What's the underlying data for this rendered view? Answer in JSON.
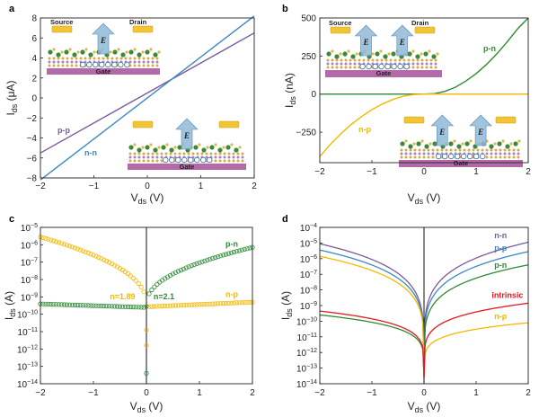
{
  "colors": {
    "purple": "#7a5a9e",
    "blue": "#3a88c4",
    "green": "#2e8b36",
    "yellow": "#f5b800",
    "red": "#e8161e",
    "gate": "#b36aa8",
    "electrode": "#f3c531",
    "arrow": "#8fb8d8"
  },
  "chart_data": [
    {
      "panel": "a",
      "type": "line",
      "xlabel": "V_ds (V)",
      "ylabel": "I_ds (μA)",
      "xlim": [
        -2,
        2
      ],
      "ylim": [
        -8,
        8
      ],
      "xticks": [
        -2,
        -1,
        0,
        1,
        2
      ],
      "yticks": [
        -8,
        -6,
        -4,
        -2,
        0,
        2,
        4,
        6,
        8
      ],
      "series": [
        {
          "name": "p-p",
          "color": "#7a5a9e",
          "x": [
            -2,
            2
          ],
          "y": [
            -5.5,
            6.5
          ]
        },
        {
          "name": "n-n",
          "color": "#3a88c4",
          "x": [
            -2,
            2
          ],
          "y": [
            -8.2,
            8.2
          ]
        }
      ],
      "insets": {
        "source": "Source",
        "drain": "Drain",
        "gate": "Gate",
        "field": "E"
      }
    },
    {
      "panel": "b",
      "type": "line",
      "xlabel": "V_ds (V)",
      "ylabel": "I_ds (nA)",
      "xlim": [
        -2,
        2
      ],
      "ylim": [
        -450,
        500
      ],
      "xticks": [
        -2,
        -1,
        0,
        1,
        2
      ],
      "yticks": [
        -250,
        0,
        250,
        500
      ],
      "series": [
        {
          "name": "p-n",
          "color": "#2e8b36",
          "x": [
            -2,
            0,
            0.2,
            0.4,
            0.6,
            0.8,
            1.0,
            1.2,
            1.4,
            1.6,
            1.8,
            2.0
          ],
          "y": [
            0,
            0,
            3,
            18,
            45,
            85,
            135,
            195,
            265,
            345,
            430,
            520
          ]
        },
        {
          "name": "n-p",
          "color": "#f5b800",
          "x": [
            -2.0,
            -1.8,
            -1.6,
            -1.4,
            -1.2,
            -1.0,
            -0.8,
            -0.6,
            -0.4,
            -0.2,
            0,
            2
          ],
          "y": [
            -410,
            -330,
            -262,
            -200,
            -148,
            -102,
            -65,
            -35,
            -14,
            -3,
            0,
            0
          ]
        }
      ],
      "insets": {
        "source": "Source",
        "drain": "Drain",
        "gate": "Gate",
        "field": "E"
      }
    },
    {
      "panel": "c",
      "type": "scatter",
      "xlabel": "V_ds (V)",
      "ylabel": "I_ds (A)",
      "xlim": [
        -2,
        2
      ],
      "ylog": true,
      "ylim_exp": [
        -14,
        -5
      ],
      "xticks": [
        -2,
        -1,
        0,
        1,
        2
      ],
      "series": [
        {
          "name": "p-n",
          "color": "#2e8b36",
          "key": "pn",
          "fwd": [
            -6.15,
            -9.45
          ],
          "rev": [
            -9.4,
            -9.75
          ]
        },
        {
          "name": "n-p",
          "color": "#f5b800",
          "key": "np",
          "fwd": [
            -9.3,
            -9.75
          ],
          "rev": [
            -5.55,
            -9.45
          ]
        }
      ],
      "annotations": [
        {
          "text": "n=1.89",
          "color": "#f5b800",
          "x": -0.45,
          "yexp": -9.15
        },
        {
          "text": "n=2.1",
          "color": "#2e8b36",
          "x": 0.33,
          "yexp": -9.15
        }
      ]
    },
    {
      "panel": "d",
      "type": "line",
      "xlabel": "V_ds (V)",
      "ylabel": "I_ds (A)",
      "xlim": [
        -2,
        2
      ],
      "ylog": true,
      "ylim_exp": [
        -14,
        -4
      ],
      "xticks": [
        -2,
        -1,
        0,
        1,
        2
      ],
      "series": [
        {
          "name": "n-n",
          "color": "#7a5a9e",
          "left": -5.05,
          "right": -4.95
        },
        {
          "name": "p-p",
          "color": "#3a88c4",
          "left": -5.45,
          "right": -5.55
        },
        {
          "name": "",
          "color": "#f5b800",
          "left": -5.85,
          "right": -10.1
        },
        {
          "name": "p-n",
          "color": "#2e8b36",
          "left": -9.6,
          "right": -6.4
        },
        {
          "name": "intrinsic",
          "color": "#e8161e",
          "left": -9.35,
          "right": -8.85
        }
      ],
      "labels": [
        {
          "text": "n-n",
          "color": "#7a5a9e",
          "x": 1.35,
          "yexp": -4.7
        },
        {
          "text": "p-p",
          "color": "#3a88c4",
          "x": 1.35,
          "yexp": -5.5
        },
        {
          "text": "p-n",
          "color": "#2e8b36",
          "x": 1.35,
          "yexp": -6.6
        },
        {
          "text": "intrinsic",
          "color": "#e8161e",
          "x": 1.3,
          "yexp": -8.5
        },
        {
          "text": "n-p",
          "color": "#f5b800",
          "x": 1.35,
          "yexp": -9.85
        }
      ]
    }
  ]
}
